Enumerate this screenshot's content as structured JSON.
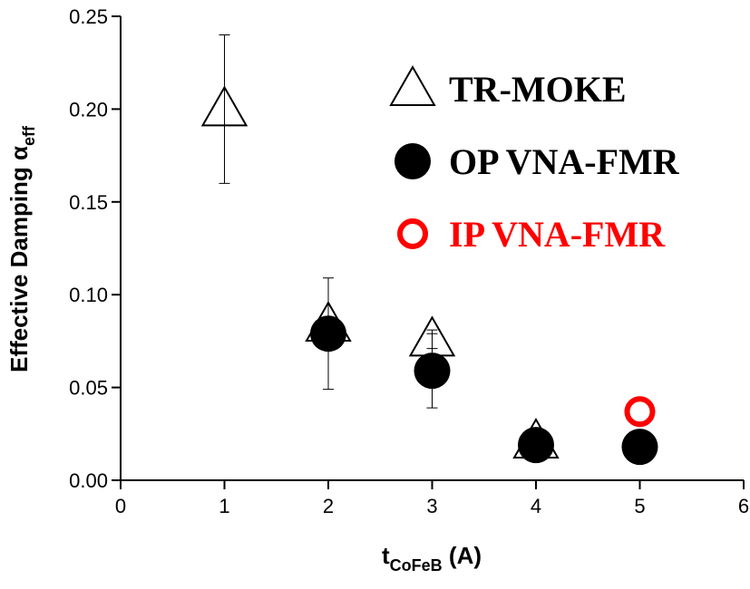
{
  "chart_data": {
    "type": "scatter",
    "xlabel": {
      "main": "t",
      "sub": "CoFeB",
      "tail": "(A)"
    },
    "ylabel": {
      "main": "Effective Damping α",
      "sub": "eff"
    },
    "xlim": [
      0,
      6
    ],
    "xticks": [
      0,
      1,
      2,
      3,
      4,
      5,
      6
    ],
    "ylim": [
      0,
      0.25
    ],
    "yticks": [
      {
        "value": 0,
        "label": "0.00"
      },
      {
        "value": 0.05,
        "label": "0.05"
      },
      {
        "value": 0.1,
        "label": "0.10"
      },
      {
        "value": 0.15,
        "label": "0.15"
      },
      {
        "value": 0.2,
        "label": "0.20"
      },
      {
        "value": 0.25,
        "label": "0.25"
      }
    ],
    "series": [
      {
        "name": "TR-MOKE",
        "color": "#000000",
        "marker": "triangle-open",
        "x": [
          1,
          2,
          3,
          4
        ],
        "values": [
          0.2,
          0.084,
          0.076,
          0.021
        ],
        "errors": [
          0.04,
          null,
          0.005,
          0.005
        ]
      },
      {
        "name": "OP VNA-FMR",
        "color": "#000000",
        "marker": "circle-filled",
        "x": [
          2,
          3,
          4,
          5
        ],
        "values": [
          0.079,
          0.059,
          0.019,
          0.018
        ],
        "errors": [
          0.03,
          0.02,
          null,
          null
        ]
      },
      {
        "name": "IP VNA-FMR",
        "color": "#ff0000",
        "marker": "circle-open",
        "x": [
          5
        ],
        "values": [
          0.037
        ],
        "errors": [
          null
        ]
      }
    ]
  }
}
